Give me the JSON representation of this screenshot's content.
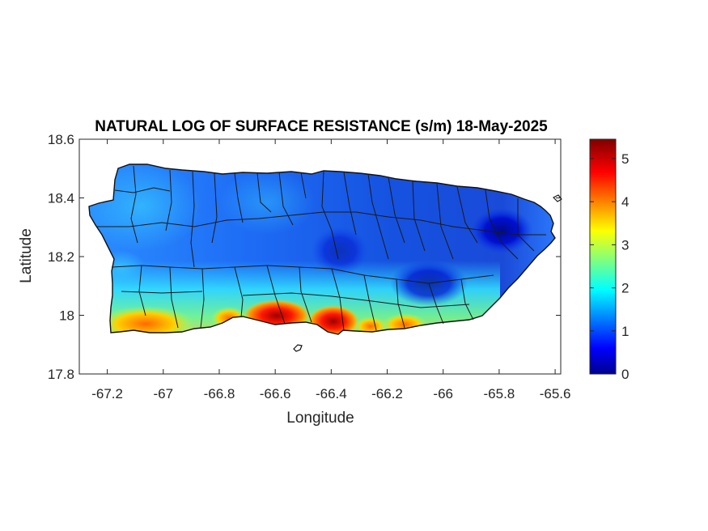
{
  "chart_data": {
    "type": "heatmap",
    "title": "NATURAL LOG OF SURFACE RESISTANCE (s/m) 18-May-2025",
    "xlabel": "Longitude",
    "ylabel": "Latitude",
    "xlim": [
      -67.3,
      -65.58
    ],
    "ylim": [
      17.8,
      18.6
    ],
    "xticks": [
      -67.2,
      -67,
      -66.8,
      -66.6,
      -66.4,
      -66.2,
      -66,
      -65.8,
      -65.6
    ],
    "xtick_labels": [
      "-67.2",
      "-67",
      "-66.8",
      "-66.6",
      "-66.4",
      "-66.2",
      "-66",
      "-65.8",
      "-65.6"
    ],
    "yticks": [
      17.8,
      18,
      18.2,
      18.4,
      18.6
    ],
    "ytick_labels": [
      "17.8",
      "18",
      "18.2",
      "18.4",
      "18.6"
    ],
    "colorbar": {
      "colormap": "jet",
      "range": [
        0,
        5.45
      ],
      "ticks": [
        0,
        1,
        2,
        3,
        4,
        5
      ],
      "tick_labels": [
        "0",
        "1",
        "2",
        "3",
        "4",
        "5"
      ]
    },
    "region": "Puerto Rico",
    "boundaries": "municipal boundaries shown as black lines",
    "value_pattern": {
      "interior": 1.5,
      "east_low": 0.4,
      "south_coast_high": 5.0,
      "southwest_coast": 3.2
    }
  }
}
